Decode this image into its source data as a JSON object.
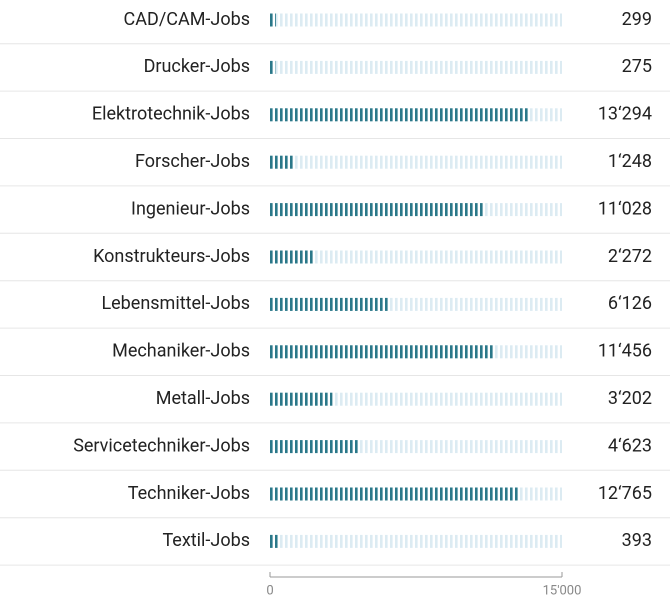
{
  "chart_data": {
    "type": "bar",
    "orientation": "horizontal",
    "categories": [
      "CAD/CAM-Jobs",
      "Drucker-Jobs",
      "Elektrotechnik-Jobs",
      "Forscher-Jobs",
      "Ingenieur-Jobs",
      "Konstrukteurs-Jobs",
      "Lebensmittel-Jobs",
      "Mechaniker-Jobs",
      "Metall-Jobs",
      "Servicetechniker-Jobs",
      "Techniker-Jobs",
      "Textil-Jobs"
    ],
    "values": [
      299,
      275,
      13294,
      1248,
      11028,
      2272,
      6126,
      11456,
      3202,
      4623,
      12765,
      393
    ],
    "value_labels": [
      "299",
      "275",
      "13‘294",
      "1‘248",
      "11‘028",
      "2‘272",
      "6‘126",
      "11‘456",
      "3‘202",
      "4‘623",
      "12‘765",
      "393"
    ],
    "color": "#2b7889",
    "track_color": "#dcebf2",
    "xlim": [
      0,
      15000
    ],
    "xticks": [
      0,
      {
        "value": 15000,
        "label": "15'000"
      }
    ]
  }
}
